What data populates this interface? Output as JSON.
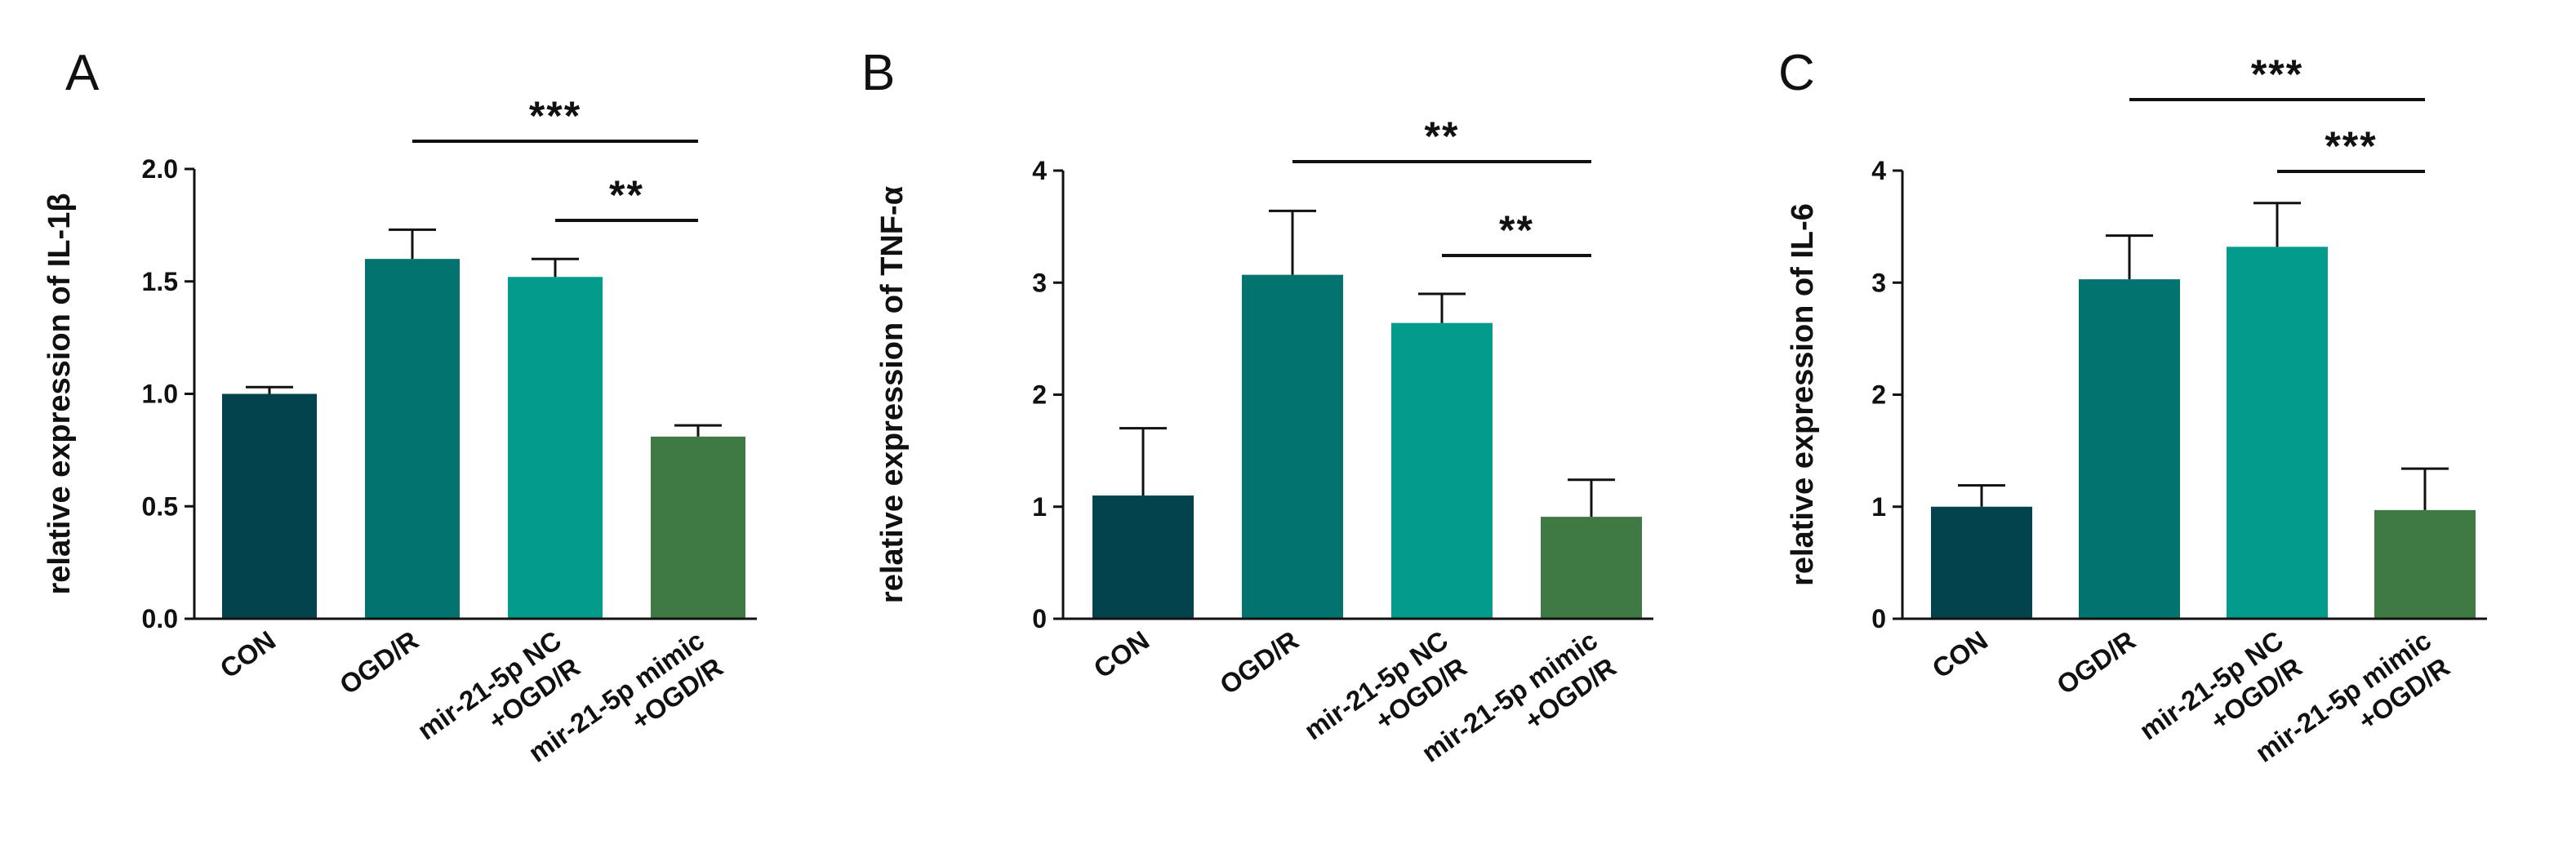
{
  "chart_data": [
    {
      "type": "bar",
      "panel": "A",
      "ylabel": "relative expression of IL-1β",
      "ylim": [
        0,
        2.0
      ],
      "yticks": [
        "0.0",
        "0.5",
        "1.0",
        "1.5",
        "2.0"
      ],
      "ytick_values": [
        0,
        0.5,
        1.0,
        1.5,
        2.0
      ],
      "categories": [
        [
          "CON"
        ],
        [
          "OGD/R"
        ],
        [
          "mir-21-5p NC",
          "+OGD/R"
        ],
        [
          "mir-21-5p mimic",
          "+OGD/R"
        ]
      ],
      "values": [
        1.0,
        1.6,
        1.52,
        0.81
      ],
      "errors": [
        0.03,
        0.13,
        0.08,
        0.05
      ],
      "colors": [
        "#02434e",
        "#03736f",
        "#029b8c",
        "#3f7a44"
      ],
      "significance": [
        {
          "from": 1,
          "to": 3,
          "label": "***"
        },
        {
          "from": 2,
          "to": 3,
          "label": "**"
        }
      ]
    },
    {
      "type": "bar",
      "panel": "B",
      "ylabel": "relative expression of TNF-α",
      "ylim": [
        0,
        4
      ],
      "yticks": [
        "0",
        "1",
        "2",
        "3",
        "4"
      ],
      "ytick_values": [
        0,
        1,
        2,
        3,
        4
      ],
      "categories": [
        [
          "CON"
        ],
        [
          "OGD/R"
        ],
        [
          "mir-21-5p NC",
          "+OGD/R"
        ],
        [
          "mir-21-5p mimic",
          "+OGD/R"
        ]
      ],
      "values": [
        1.1,
        3.07,
        2.64,
        0.91
      ],
      "errors": [
        0.6,
        0.57,
        0.26,
        0.33
      ],
      "colors": [
        "#02434e",
        "#03736f",
        "#029b8c",
        "#3f7a44"
      ],
      "significance": [
        {
          "from": 1,
          "to": 3,
          "label": "**"
        },
        {
          "from": 2,
          "to": 3,
          "label": "**"
        }
      ]
    },
    {
      "type": "bar",
      "panel": "C",
      "ylabel": "relative expression of IL-6",
      "ylim": [
        0,
        4
      ],
      "yticks": [
        "0",
        "1",
        "2",
        "3",
        "4"
      ],
      "ytick_values": [
        0,
        1,
        2,
        3,
        4
      ],
      "categories": [
        [
          "CON"
        ],
        [
          "OGD/R"
        ],
        [
          "mir-21-5p NC",
          "+OGD/R"
        ],
        [
          "mir-21-5p mimic",
          "+OGD/R"
        ]
      ],
      "values": [
        1.0,
        3.03,
        3.32,
        0.97
      ],
      "errors": [
        0.19,
        0.39,
        0.39,
        0.37
      ],
      "colors": [
        "#02434e",
        "#03736f",
        "#029b8c",
        "#3f7a44"
      ],
      "significance": [
        {
          "from": 1,
          "to": 3,
          "label": "***"
        },
        {
          "from": 2,
          "to": 3,
          "label": "***"
        }
      ]
    }
  ]
}
